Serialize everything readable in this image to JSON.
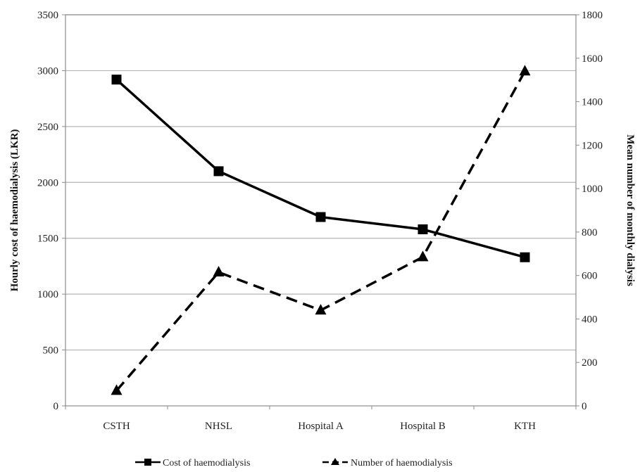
{
  "chart_data": {
    "type": "line",
    "title": "",
    "categories": [
      "CSTH",
      "NHSL",
      "Hospital A",
      "Hospital B",
      "KTH"
    ],
    "y_left": {
      "label": "Hourly cost of haemodialysis   (LKR)",
      "range": [
        0,
        3500
      ],
      "ticks": [
        "0",
        "500",
        "1000",
        "1500",
        "2000",
        "2500",
        "3000",
        "3500"
      ]
    },
    "y_right": {
      "label": "Mean number of monthly dialysis",
      "range": [
        0,
        1800
      ],
      "ticks": [
        "0",
        "200",
        "400",
        "600",
        "800",
        "1000",
        "1200",
        "1400",
        "1600",
        "1800"
      ]
    },
    "grid": "horizontal",
    "legend_position": "bottom",
    "series": [
      {
        "name": "Cost of haemodialysis",
        "axis": "left",
        "style": "solid",
        "marker": "square",
        "values": [
          2920,
          2100,
          1690,
          1580,
          1330
        ]
      },
      {
        "name": "Number of haemodialysis",
        "axis": "right",
        "style": "dashed",
        "marker": "triangle",
        "values": [
          70,
          615,
          440,
          685,
          1540
        ]
      }
    ],
    "colors": {
      "line": "#000000",
      "grid": "#b5b5b5",
      "frame": "#8c8c8c"
    }
  }
}
